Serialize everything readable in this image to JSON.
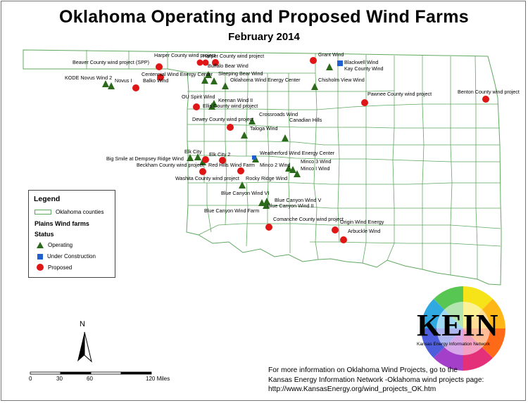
{
  "title": "Oklahoma Operating and Proposed Wind Farms",
  "subtitle": "February 2014",
  "legend": {
    "title": "Legend",
    "counties_label": "Oklahoma counties",
    "layer_label": "Plains Wind farms",
    "status_label": "Status",
    "items": [
      {
        "label": "Operating",
        "symbol": "green-triangle",
        "color": "#2a6a1a"
      },
      {
        "label": "Under Construction",
        "symbol": "blue-square",
        "color": "#1f5fd0"
      },
      {
        "label": "Proposed",
        "symbol": "red-circle",
        "color": "#e01515"
      }
    ]
  },
  "north_label": "N",
  "scale_bar": {
    "ticks": [
      "0",
      "30",
      "60",
      "120 Miles"
    ]
  },
  "info": {
    "line1": "For more information on Oklahoma Wind Projects, go to the",
    "line2": "Kansas Energy Information Network -Oklahoma wind projects page:",
    "line3": "http://www.KansasEnergy.org/wind_projects_OK.htm"
  },
  "logo": {
    "text": "KEIN",
    "subtext": "Kansas Energy Information Network"
  },
  "colors": {
    "county_border": "#5fa85f",
    "operating": "#2a6a1a",
    "under_construction": "#1f5fd0",
    "proposed": "#e01515"
  },
  "map_labels": [
    "Harper County wind project",
    "Harper County wind project",
    "Beaver County wind project (SPP)",
    "Buffalo Bear Wind",
    "Grant Wind",
    "Blackwell Wind",
    "Kay County Wind",
    "KODE Novus Wind 2",
    "Novus I",
    "Centennial Wind Energy Center",
    "Balko Wind",
    "Sleeping Bear Wind",
    "Oklahoma Wind Energy Center",
    "Chisholm View Wind",
    "OU Spirit Wind",
    "Keenan Wind II",
    "Ellis County wind project",
    "Pawnee County wind project",
    "Benton County wind project",
    "Crossroads Wind",
    "Dewey County wind project",
    "Taloga Wind",
    "Canadian Hills",
    "Elk City",
    "Elk City 2",
    "Big Smile at Dempsey Ridge Wind",
    "Weatherford Wind Energy Center",
    "Beckham County wind project",
    "Red Hills Wind Farm",
    "Minco 2 Wind",
    "Minco 3 Wind",
    "Minco I Wind",
    "Washita County wind project",
    "Rocky Ridge Wind",
    "Blue Canyon Wind VI",
    "Blue Canyon Wind V",
    "Blue Canyon Wind II",
    "Blue Canyon Wind Farm",
    "Comanche County wind project",
    "Origin Wind Energy",
    "Arbuckle Wind"
  ]
}
